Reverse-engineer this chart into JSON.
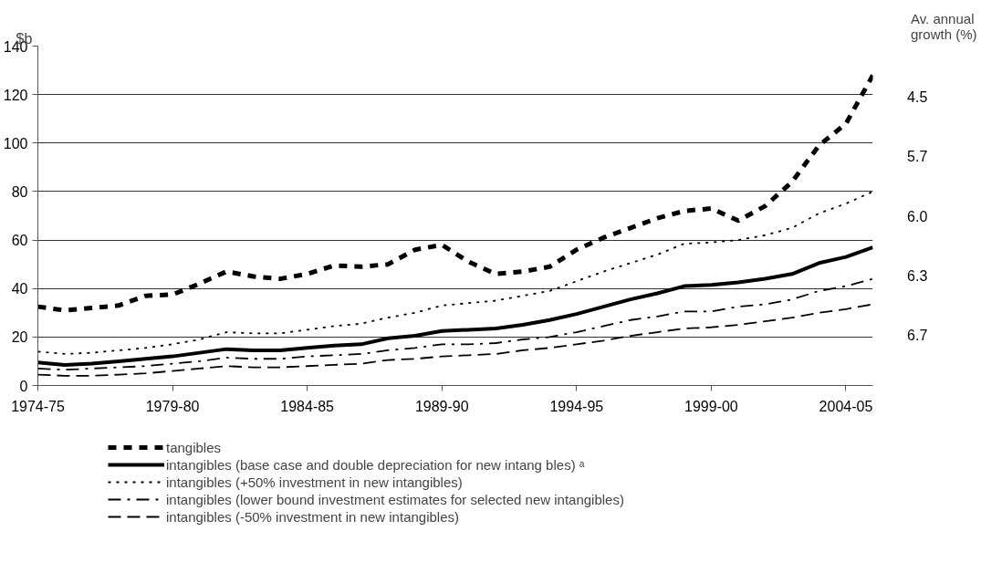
{
  "chart_data": {
    "type": "line",
    "ylabel": "$b",
    "categories": [
      "1974-75",
      null,
      null,
      null,
      null,
      "1979-80",
      null,
      null,
      null,
      null,
      "1984-85",
      null,
      null,
      null,
      null,
      "1989-90",
      null,
      null,
      null,
      null,
      "1994-95",
      null,
      null,
      null,
      null,
      "1999-00",
      null,
      null,
      null,
      null,
      "2004-05",
      null
    ],
    "series": [
      {
        "name": "tangibles",
        "color": "#000000",
        "line_style": "dashed",
        "values": [
          32.5,
          31,
          32,
          33,
          37,
          37.5,
          42,
          47,
          45,
          44,
          46,
          49.5,
          49,
          50,
          56,
          58,
          51,
          46,
          47,
          49,
          56,
          61,
          65,
          69,
          72,
          73,
          68,
          74,
          84,
          99,
          108,
          128
        ]
      },
      {
        "name": "intangibles (base case and double depreciation for new intang bles) ᵃ",
        "color": "#000000",
        "line_style": "solid",
        "values": [
          9.5,
          8.5,
          9,
          10,
          11,
          12,
          13.5,
          15,
          14.5,
          14.5,
          15.5,
          16.5,
          17,
          19.5,
          20.5,
          22.5,
          23,
          23.5,
          25,
          27,
          29.5,
          32.5,
          35.5,
          38,
          41,
          41.5,
          42.5,
          44,
          46,
          50.5,
          53,
          57
        ]
      },
      {
        "name": "intangibles (+50% investment in new intangibles)",
        "color": "#000000",
        "line_style": "dotted",
        "values": [
          14,
          13,
          13.5,
          14.5,
          15.5,
          17,
          19,
          22,
          21.5,
          21.5,
          23,
          24.5,
          25.5,
          28,
          30,
          33,
          34,
          35,
          37,
          39,
          43,
          47,
          50.5,
          54,
          58.5,
          59,
          60,
          62,
          65,
          71,
          75,
          80
        ]
      },
      {
        "name": "intangibles (lower bound investment estimates for selected new intangibles)",
        "color": "#000000",
        "line_style": "dashdot",
        "values": [
          7,
          6.5,
          7,
          7.5,
          8,
          9,
          10,
          11.5,
          11,
          11,
          12,
          12.5,
          13,
          14.5,
          15.5,
          17,
          17,
          17.5,
          19,
          20,
          22,
          24.5,
          27,
          28.5,
          30.5,
          30.5,
          32.5,
          33.5,
          35.5,
          39,
          41,
          44
        ]
      },
      {
        "name": "intangibles (-50% investment in new intangibles)",
        "color": "#000000",
        "line_style": "dashed",
        "values": [
          4.5,
          4,
          4,
          4.5,
          5,
          6,
          7,
          8,
          7.5,
          7.5,
          8,
          8.5,
          9,
          10.5,
          11,
          12,
          12.5,
          13,
          14.5,
          15.5,
          17,
          18.5,
          20.5,
          22,
          23.5,
          24,
          25,
          26.5,
          28,
          30,
          31.5,
          33.5
        ]
      }
    ],
    "ylim": [
      0,
      140
    ],
    "yticks": [
      0,
      20,
      40,
      60,
      80,
      100,
      120,
      140
    ],
    "grid": "y",
    "legend": "bottom",
    "annotations": [
      "Av. annual growth (%)",
      "4.5",
      "5.7",
      "6.0",
      "6.3",
      "6.7"
    ]
  }
}
